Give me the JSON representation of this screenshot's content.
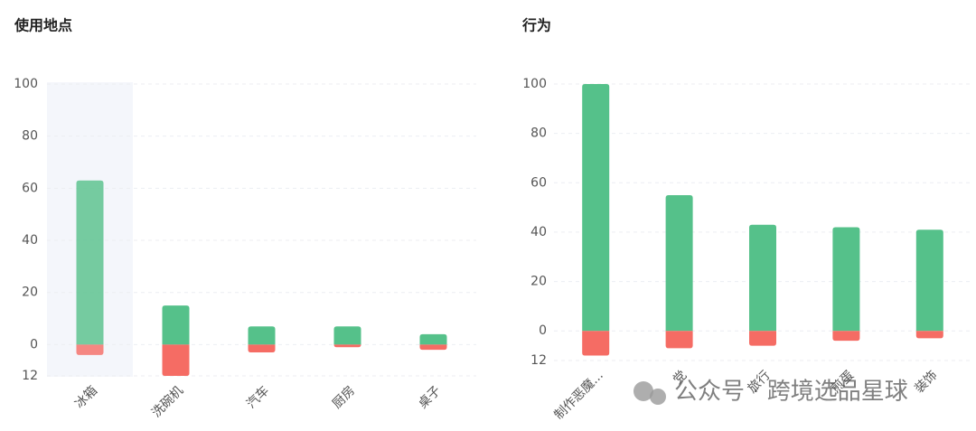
{
  "chart_data": [
    {
      "type": "bar",
      "title": "使用地点",
      "categories": [
        "冰箱",
        "洗碗机",
        "汽车",
        "厨房",
        "桌子"
      ],
      "series": [
        {
          "color": "#55c18a",
          "values": [
            63,
            15,
            7,
            7,
            4
          ]
        },
        {
          "color": "#f56c64",
          "values": [
            -4,
            -12,
            -3,
            -1,
            -2
          ]
        }
      ],
      "ylim": [
        -12,
        100
      ],
      "yticks": [
        100,
        80,
        60,
        40,
        20,
        0,
        {
          "value": -12,
          "label": "12"
        }
      ],
      "grid": true
    },
    {
      "type": "bar",
      "title": "行为",
      "categories": [
        "制作恶魔...",
        "党",
        "旅行",
        "煎蛋",
        "装饰"
      ],
      "series": [
        {
          "color": "#55c18a",
          "values": [
            100,
            55,
            43,
            42,
            41
          ]
        },
        {
          "color": "#f56c64",
          "values": [
            -10,
            -7,
            -6,
            -4,
            -3
          ]
        }
      ],
      "ylim": [
        -12,
        100
      ],
      "yticks": [
        100,
        80,
        60,
        40,
        20,
        0,
        {
          "value": -12,
          "label": "12"
        }
      ],
      "grid": true
    }
  ],
  "watermark": "公众号 · 跨境选品星球"
}
